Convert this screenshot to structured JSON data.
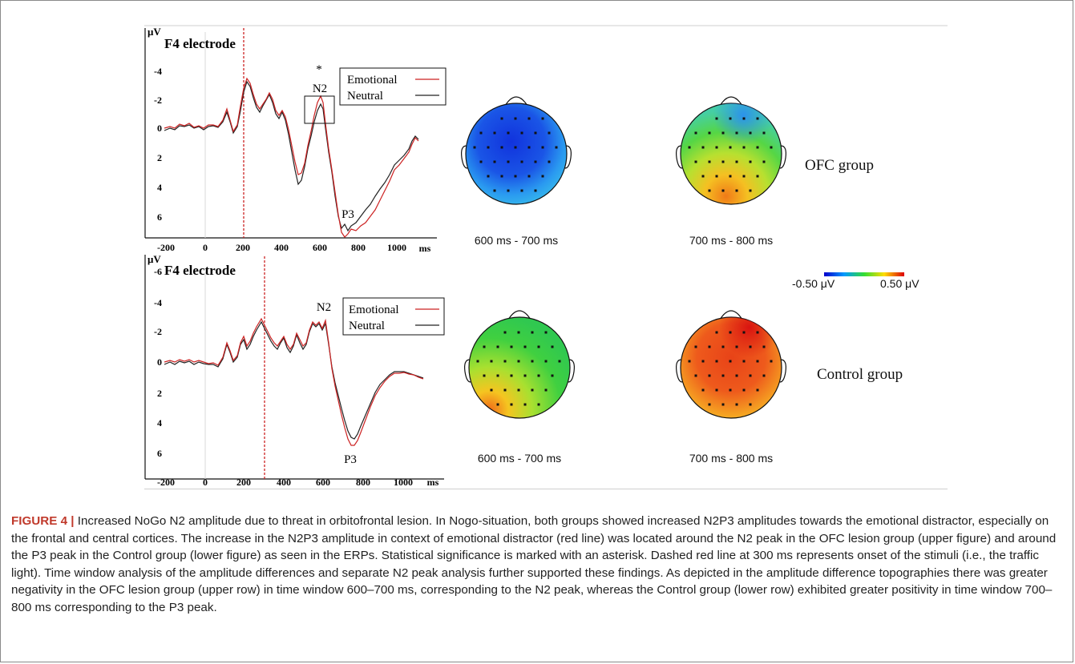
{
  "figure": {
    "erp_panels": [
      {
        "electrode": "F4 electrode",
        "unit": "μV",
        "y_ticks": [
          "-4",
          "-2",
          "0",
          "2",
          "4",
          "6"
        ],
        "x_ticks": [
          "-200",
          "0",
          "200",
          "400",
          "600",
          "800",
          "1000"
        ],
        "x_unit": "ms",
        "n2_label": "N2",
        "p3_label": "P3",
        "significance": "*",
        "legend": [
          "Emotional",
          "Neutral"
        ]
      },
      {
        "electrode": "F4 electrode",
        "unit": "μV",
        "y_ticks": [
          "-6",
          "-4",
          "-2",
          "0",
          "2",
          "4",
          "6"
        ],
        "x_ticks": [
          "-200",
          "0",
          "200",
          "400",
          "600",
          "800",
          "1000"
        ],
        "x_unit": "ms",
        "n2_label": "N2",
        "p3_label": "P3",
        "legend": [
          "Emotional",
          "Neutral"
        ]
      }
    ],
    "topomaps": {
      "windows": [
        "600 ms - 700 ms",
        "700 ms - 800 ms",
        "600 ms - 700 ms",
        "700 ms - 800 ms"
      ],
      "groups": [
        "OFC group",
        "Control group"
      ]
    },
    "colorbar": {
      "min_label": "-0.50 μV",
      "max_label": "0.50 μV"
    },
    "colors": {
      "emotional": "#cc2222",
      "neutral": "#222222",
      "stimulus_line": "#cc2222"
    }
  },
  "caption": {
    "lead": "FIGURE 4 |",
    "text": " Increased NoGo N2 amplitude due to threat in orbitofrontal lesion. In Nogo-situation, both groups showed increased N2P3 amplitudes towards the emotional distractor, especially on the frontal and central cortices. The increase in the N2P3 amplitude in context of emotional distractor (red line) was located around the N2 peak in the OFC lesion group (upper figure) and around the P3 peak in the Control group (lower figure) as seen in the ERPs. Statistical significance is marked with an asterisk. Dashed red line at 300 ms represents onset of the stimuli (i.e., the traffic light). Time window analysis of the amplitude differences and separate N2 peak analysis further supported these findings. As depicted in the amplitude difference topographies there was greater negativity in the OFC lesion group (upper row) in time window 600–700 ms, corresponding to the N2 peak, whereas the Control group (lower row) exhibited greater positivity in time window 700–800 ms corresponding to the P3 peak."
  }
}
